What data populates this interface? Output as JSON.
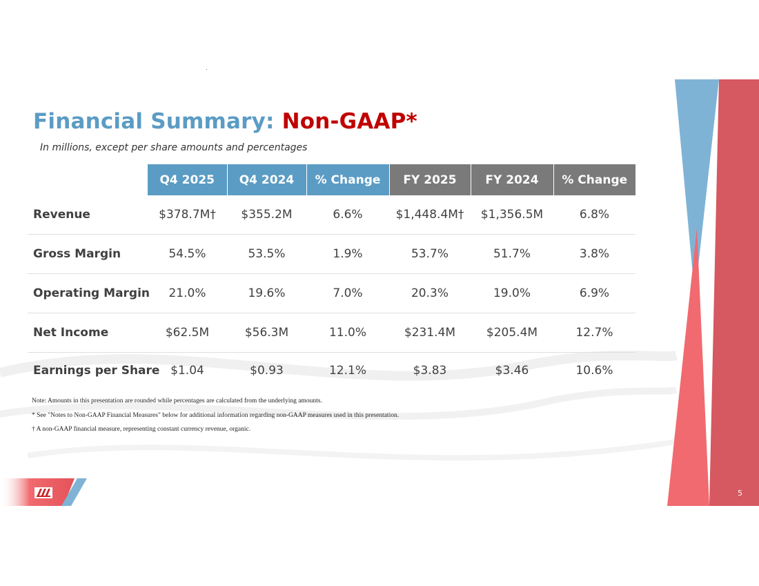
{
  "title": {
    "part1": "Financial Summary: ",
    "part2": "Non-GAAP*"
  },
  "subtitle": "In millions, except per share amounts and percentages",
  "table": {
    "headers": [
      "Q4 2025",
      "Q4 2024",
      "% Change",
      "FY 2025",
      "FY 2024",
      "% Change"
    ],
    "rows": [
      {
        "label": "Revenue",
        "values": [
          "$378.7M†",
          "$355.2M",
          "6.6%",
          "$1,448.4M†",
          "$1,356.5M",
          "6.8%"
        ]
      },
      {
        "label": "Gross Margin",
        "values": [
          "54.5%",
          "53.5%",
          "1.9%",
          "53.7%",
          "51.7%",
          "3.8%"
        ]
      },
      {
        "label": "Operating Margin",
        "values": [
          "21.0%",
          "19.6%",
          "7.0%",
          "20.3%",
          "19.0%",
          "6.9%"
        ]
      },
      {
        "label": "Net Income",
        "values": [
          "$62.5M",
          "$56.3M",
          "11.0%",
          "$231.4M",
          "$205.4M",
          "12.7%"
        ]
      },
      {
        "label": "Earnings per Share",
        "values": [
          "$1.04",
          "$0.93",
          "12.1%",
          "$3.83",
          "$3.46",
          "10.6%"
        ]
      }
    ]
  },
  "notes": [
    "Note: Amounts in this presentation are rounded while percentages are calculated from the underlying amounts.",
    "* See \"Notes to Non-GAAP Financial Measures\" below for additional information regarding non-GAAP measures used in this presentation.",
    "† A non-GAAP financial measure, representing constant currency revenue, organic."
  ],
  "page_number": "5",
  "colors": {
    "accent_blue": "#5b9cc4",
    "accent_red": "#c00000",
    "header_gray": "#7a7a7a",
    "deco_red": "#e05a60",
    "deco_blue": "#7fb3d5"
  },
  "logo": "company-logo"
}
